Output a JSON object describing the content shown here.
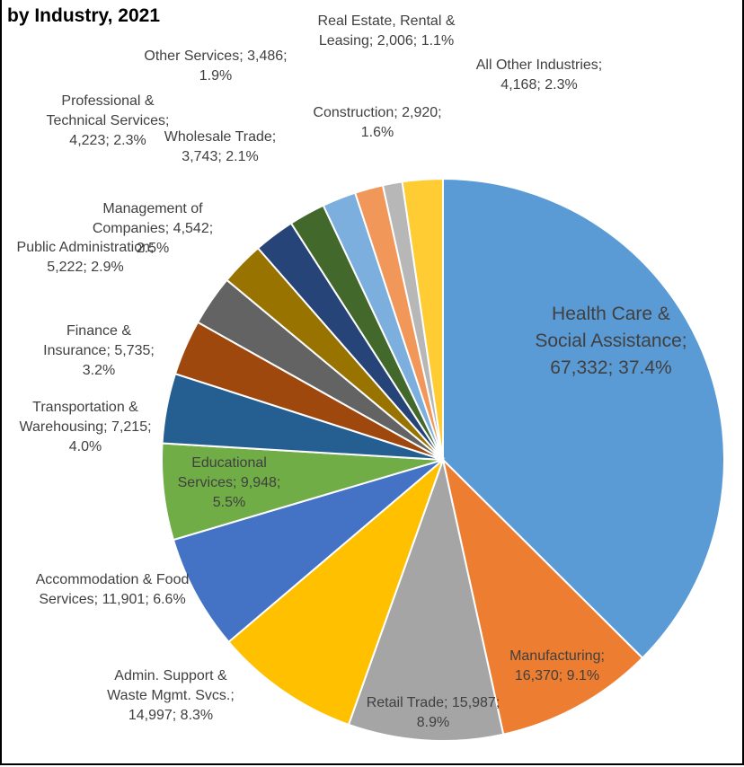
{
  "chart_data": {
    "type": "pie",
    "title": "by Industry, 2021",
    "categories": [
      "Health Care & Social Assistance;",
      "Manufacturing;",
      "Retail Trade;",
      "Admin. Support & Waste Mgmt. Svcs.;",
      "Accommodation & Food Services;",
      "Educational Services;",
      "Transportation & Warehousing;",
      "Finance & Insurance;",
      "Public Administration;",
      "Management of Companies;",
      "Professional & Technical Services;",
      "Wholesale Trade;",
      "Other Services;",
      "Construction;",
      "Real Estate, Rental & Leasing;",
      "All Other Industries;"
    ],
    "values": [
      67332,
      16370,
      15987,
      14997,
      11901,
      9948,
      7215,
      5735,
      5222,
      4542,
      4223,
      3743,
      3486,
      2920,
      2006,
      4168
    ],
    "value_labels": [
      "67,332; 37.4%",
      "16,370; 9.1%",
      "15,987; 8.9%",
      "14,997; 8.3%",
      "11,901; 6.6%",
      "9,948; 5.5%",
      "7,215; 4.0%",
      "5,735; 3.2%",
      "5,222; 2.9%",
      "4,542; 2.5%",
      "4,223; 2.3%",
      "3,743; 2.1%",
      "3,486; 1.9%",
      "2,920; 1.6%",
      "2,006; 1.1%",
      "4,168; 2.3%"
    ],
    "colors": [
      "#5b9bd5",
      "#ed7d31",
      "#a5a5a5",
      "#ffc000",
      "#4472c4",
      "#70ad47",
      "#255e91",
      "#9e480e",
      "#636363",
      "#997300",
      "#264478",
      "#43682b",
      "#7cafdd",
      "#f1975a",
      "#b7b7b7",
      "#ffcd33"
    ]
  }
}
